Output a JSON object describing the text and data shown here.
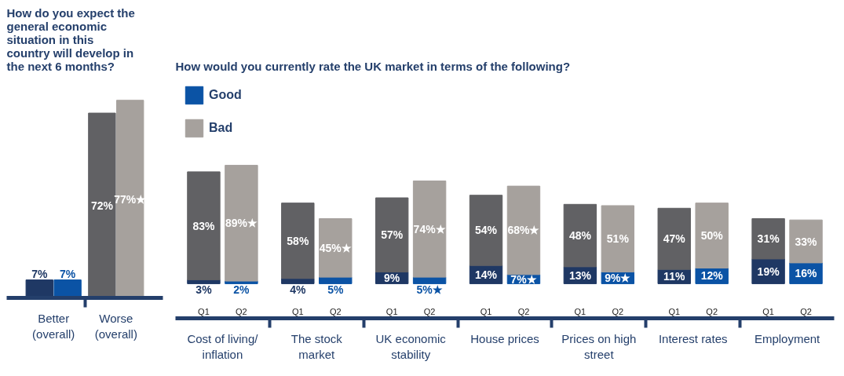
{
  "chart_data": [
    {
      "type": "bar",
      "title": "How do you expect the general economic situation in this country will develop in the next 6 months?",
      "categories": [
        "Better (overall)",
        "Worse (overall)"
      ],
      "series": [
        {
          "colors": [
            "#1f3864",
            "#616164"
          ],
          "values": [
            7,
            72
          ],
          "value_labels": [
            "7%",
            "72%"
          ]
        },
        {
          "colors": [
            "#0b53a5",
            "#a6a19d"
          ],
          "values": [
            7,
            77
          ],
          "value_labels": [
            "7%",
            "77%★"
          ]
        }
      ]
    },
    {
      "type": "bar",
      "stacked": true,
      "title": "How would you currently rate the UK market in terms of the following?",
      "categories": [
        "Q1",
        "Q2",
        "Q1",
        "Q2",
        "Q1",
        "Q2",
        "Q1",
        "Q2",
        "Q1",
        "Q2",
        "Q1",
        "Q2",
        "Q1",
        "Q2"
      ],
      "annotations": [
        "Cost of living/inflation",
        "The stock market",
        "UK economic stability",
        "House prices",
        "Prices on high street",
        "Interest rates",
        "Employment"
      ],
      "legend": "top left",
      "series": [
        {
          "name": "Good",
          "colors": [
            "#1f3864",
            "#0b53a5",
            "#1f3864",
            "#0b53a5",
            "#1f3864",
            "#0b53a5",
            "#1f3864",
            "#0b53a5",
            "#1f3864",
            "#0b53a5",
            "#1f3864",
            "#0b53a5",
            "#1f3864",
            "#0b53a5"
          ],
          "values": [
            3,
            2,
            4,
            5,
            9,
            5,
            14,
            7,
            13,
            9,
            11,
            12,
            19,
            16
          ],
          "value_labels": [
            "3%",
            "2%",
            "4%",
            "5%",
            "9%",
            "5%★",
            "14%",
            "7%★",
            "13%",
            "9%★",
            "11%",
            "12%",
            "19%",
            "16%"
          ]
        },
        {
          "name": "Bad",
          "colors": [
            "#616164",
            "#a6a19d",
            "#616164",
            "#a6a19d",
            "#616164",
            "#a6a19d",
            "#616164",
            "#a6a19d",
            "#616164",
            "#a6a19d",
            "#616164",
            "#a6a19d",
            "#616164",
            "#a6a19d"
          ],
          "values": [
            83,
            89,
            58,
            45,
            57,
            74,
            54,
            68,
            48,
            51,
            47,
            50,
            31,
            33
          ],
          "value_labels": [
            "83%",
            "89%★",
            "58%",
            "45%★",
            "57%",
            "74%★",
            "54%",
            "68%★",
            "48%",
            "51%",
            "47%",
            "50%",
            "31%",
            "33%"
          ]
        }
      ]
    }
  ]
}
